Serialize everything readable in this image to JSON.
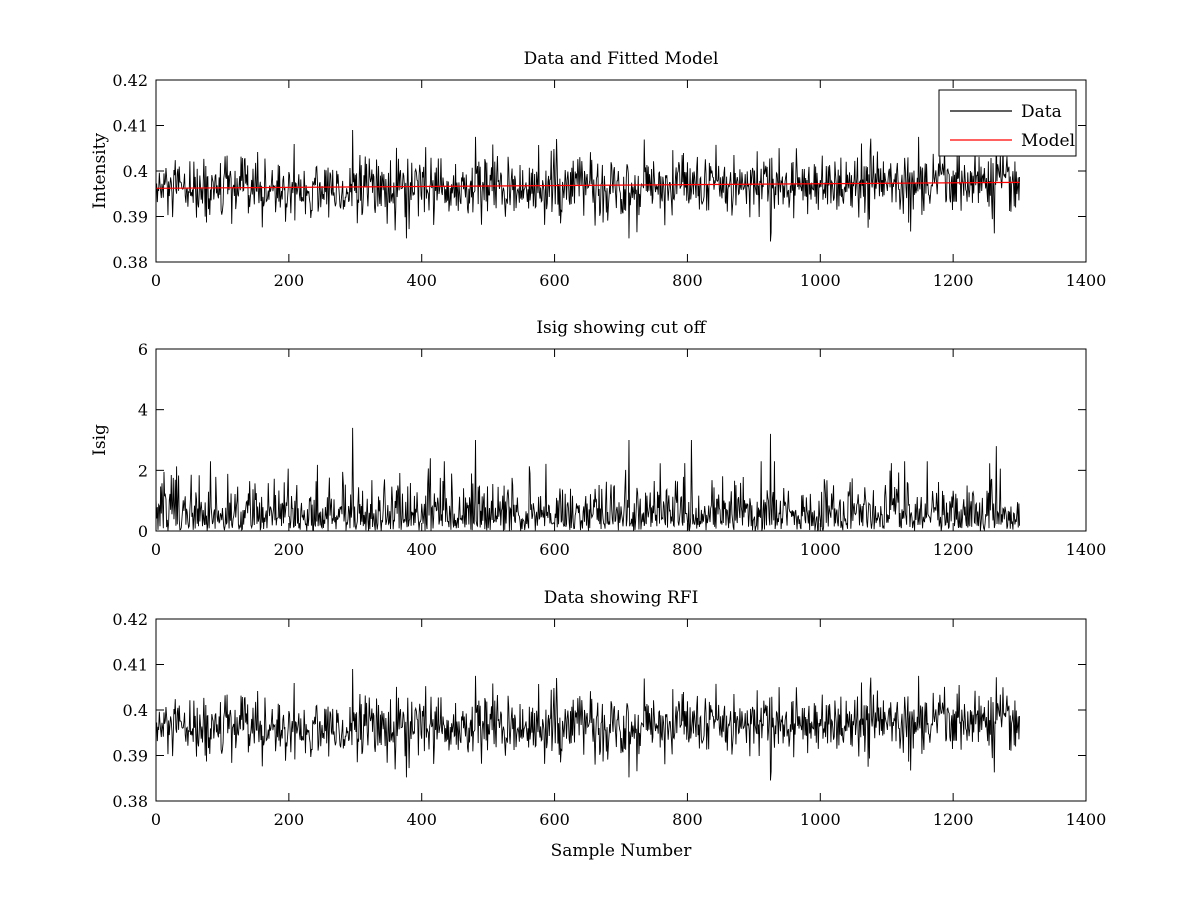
{
  "chart_data": [
    {
      "type": "line",
      "title": "Data and Fitted Model",
      "xlabel": "",
      "ylabel": "Intensity",
      "xlim": [
        0,
        1400
      ],
      "ylim": [
        0.38,
        0.42
      ],
      "xticks": [
        0,
        200,
        400,
        600,
        800,
        1000,
        1200,
        1400
      ],
      "xtick_labels": [
        "0",
        "200",
        "400",
        "600",
        "800",
        "1000",
        "1200",
        "1400"
      ],
      "yticks": [
        0.38,
        0.39,
        0.4,
        0.41,
        0.42
      ],
      "ytick_labels": [
        "0.38",
        "0.39",
        "0.4",
        "0.41",
        "0.42"
      ],
      "grid": false,
      "legend": {
        "placement": "top-right",
        "entries": [
          "Data",
          "Model"
        ]
      },
      "series": [
        {
          "name": "Data",
          "color": "#000000",
          "sample_count": 1300,
          "x_range": [
            0,
            1300
          ],
          "trend_start": 0.3955,
          "trend_end": 0.3975,
          "min": 0.385,
          "max": 0.409,
          "peaks": [
            [
              296,
              0.409
            ],
            [
              481,
              0.4075
            ],
            [
              1148,
              0.4075
            ],
            [
              1265,
              0.4072
            ]
          ],
          "troughs": [
            [
              377,
              0.3852
            ],
            [
              712,
              0.3852
            ],
            [
              925,
              0.3845
            ],
            [
              1262,
              0.3863
            ]
          ]
        },
        {
          "name": "Model",
          "color": "#ff0000",
          "x": [
            0,
            1300
          ],
          "y": [
            0.3962,
            0.3975
          ]
        }
      ]
    },
    {
      "type": "line",
      "title": "Isig showing cut off",
      "xlabel": "",
      "ylabel": "Isig",
      "xlim": [
        0,
        1400
      ],
      "ylim": [
        0,
        6
      ],
      "xticks": [
        0,
        200,
        400,
        600,
        800,
        1000,
        1200,
        1400
      ],
      "xtick_labels": [
        "0",
        "200",
        "400",
        "600",
        "800",
        "1000",
        "1200",
        "1400"
      ],
      "yticks": [
        0,
        2,
        4,
        6
      ],
      "ytick_labels": [
        "0",
        "2",
        "4",
        "6"
      ],
      "grid": false,
      "series": [
        {
          "color": "#000000",
          "sample_count": 1300,
          "x_range": [
            0,
            1300
          ],
          "min": 0,
          "max": 3.4,
          "peaks": [
            [
              296,
              3.4
            ],
            [
              413,
              2.4
            ],
            [
              481,
              3.0
            ],
            [
              712,
              3.0
            ],
            [
              806,
              3.0
            ],
            [
              925,
              3.2
            ],
            [
              1265,
              2.8
            ]
          ]
        }
      ]
    },
    {
      "type": "line",
      "title": "Data showing RFI",
      "xlabel": "Sample Number",
      "ylabel": "",
      "xlim": [
        0,
        1400
      ],
      "ylim": [
        0.38,
        0.42
      ],
      "xticks": [
        0,
        200,
        400,
        600,
        800,
        1000,
        1200,
        1400
      ],
      "xtick_labels": [
        "0",
        "200",
        "400",
        "600",
        "800",
        "1000",
        "1200",
        "1400"
      ],
      "yticks": [
        0.38,
        0.39,
        0.4,
        0.41,
        0.42
      ],
      "ytick_labels": [
        "0.38",
        "0.39",
        "0.4",
        "0.41",
        "0.42"
      ],
      "grid": false,
      "series": [
        {
          "color": "#000000",
          "sample_count": 1300,
          "x_range": [
            0,
            1300
          ],
          "trend_start": 0.3955,
          "trend_end": 0.3975,
          "min": 0.385,
          "max": 0.409,
          "peaks": [
            [
              296,
              0.409
            ],
            [
              481,
              0.4075
            ],
            [
              1148,
              0.4075
            ],
            [
              1265,
              0.4072
            ]
          ],
          "troughs": [
            [
              377,
              0.3852
            ],
            [
              712,
              0.3852
            ],
            [
              925,
              0.3845
            ],
            [
              1262,
              0.3863
            ]
          ]
        }
      ]
    }
  ]
}
